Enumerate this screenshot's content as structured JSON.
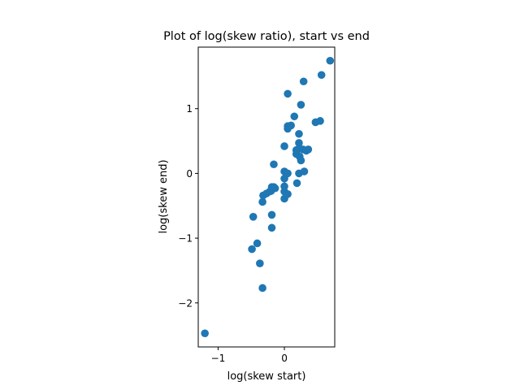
{
  "chart_data": {
    "type": "scatter",
    "title": "Plot of log(skew ratio), start vs end",
    "xlabel": "log(skew start)",
    "ylabel": "log(skew end)",
    "xlim": [
      -1.3,
      0.76
    ],
    "ylim": [
      -2.68,
      1.95
    ],
    "xticks": [
      -1,
      0
    ],
    "xtick_labels": [
      "−1",
      "0"
    ],
    "yticks": [
      -2,
      -1,
      0,
      1
    ],
    "ytick_labels": [
      "−2",
      "−1",
      "0",
      "1"
    ],
    "grid": false,
    "legend": "none",
    "marker_color": "#1f77b4",
    "series": [
      {
        "points": [
          [
            -1.2,
            -2.47
          ],
          [
            -0.49,
            -1.17
          ],
          [
            -0.41,
            -1.08
          ],
          [
            -0.37,
            -1.39
          ],
          [
            -0.33,
            -1.77
          ],
          [
            -0.47,
            -0.67
          ],
          [
            -0.19,
            -0.84
          ],
          [
            -0.19,
            -0.64
          ],
          [
            -0.33,
            -0.44
          ],
          [
            -0.32,
            -0.34
          ],
          [
            -0.27,
            -0.31
          ],
          [
            -0.22,
            -0.28
          ],
          [
            -0.2,
            -0.27
          ],
          [
            -0.18,
            -0.24
          ],
          [
            -0.16,
            -0.21
          ],
          [
            -0.14,
            -0.23
          ],
          [
            -0.19,
            -0.21
          ],
          [
            -0.16,
            0.14
          ],
          [
            0.0,
            -0.39
          ],
          [
            0.0,
            -0.28
          ],
          [
            0.0,
            -0.2
          ],
          [
            0.05,
            -0.32
          ],
          [
            0.0,
            -0.08
          ],
          [
            0.0,
            0.03
          ],
          [
            0.05,
            0.0
          ],
          [
            0.0,
            0.42
          ],
          [
            0.05,
            0.69
          ],
          [
            0.05,
            0.73
          ],
          [
            0.1,
            0.74
          ],
          [
            0.05,
            1.23
          ],
          [
            0.15,
            0.88
          ],
          [
            0.19,
            -0.15
          ],
          [
            0.22,
            0.0
          ],
          [
            0.3,
            0.03
          ],
          [
            0.18,
            0.3
          ],
          [
            0.18,
            0.36
          ],
          [
            0.22,
            0.38
          ],
          [
            0.22,
            0.47
          ],
          [
            0.23,
            0.26
          ],
          [
            0.25,
            0.2
          ],
          [
            0.28,
            0.37
          ],
          [
            0.33,
            0.35
          ],
          [
            0.36,
            0.37
          ],
          [
            0.22,
            0.61
          ],
          [
            0.25,
            1.06
          ],
          [
            0.29,
            1.42
          ],
          [
            0.47,
            0.79
          ],
          [
            0.54,
            0.81
          ],
          [
            0.56,
            1.52
          ],
          [
            0.69,
            1.74
          ]
        ]
      }
    ]
  }
}
